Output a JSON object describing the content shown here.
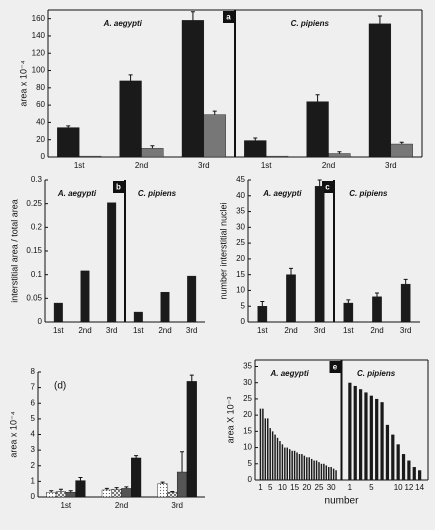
{
  "chart_data": [
    {
      "type": "bar",
      "label": "a",
      "label_boxed": true,
      "frame": true,
      "ylabel": "area x 10⁻⁴",
      "ylim": [
        0,
        170
      ],
      "yticks": [
        0,
        20,
        40,
        60,
        80,
        100,
        120,
        140,
        160
      ],
      "groups": [
        {
          "title": "A. aegypti",
          "categories": [
            "1st",
            "2nd",
            "3rd"
          ],
          "series": [
            {
              "color": "#1a1a1a",
              "values": [
                34,
                88,
                158
              ],
              "errors": [
                2,
                7,
                10
              ]
            },
            {
              "color": "#777777",
              "values": [
                1,
                10,
                49
              ],
              "errors": [
                null,
                3,
                4
              ]
            }
          ]
        },
        {
          "title": "C. pipiens",
          "categories": [
            "1st",
            "2nd",
            "3rd"
          ],
          "series": [
            {
              "color": "#1a1a1a",
              "values": [
                19,
                64,
                154
              ],
              "errors": [
                3,
                8,
                9
              ]
            },
            {
              "color": "#777777",
              "values": [
                1,
                4,
                15
              ],
              "errors": [
                null,
                2,
                2
              ]
            }
          ]
        }
      ]
    },
    {
      "type": "bar",
      "label": "b",
      "label_boxed": true,
      "frame": false,
      "ylabel": "interstitial area / total area",
      "ylim": [
        0,
        0.3
      ],
      "yticks": [
        0,
        0.05,
        0.1,
        0.15,
        0.2,
        0.25,
        0.3
      ],
      "groups": [
        {
          "title": "A. aegypti",
          "categories": [
            "1st",
            "2nd",
            "3rd"
          ],
          "series": [
            {
              "color": "#1a1a1a",
              "values": [
                0.04,
                0.108,
                0.252
              ]
            }
          ]
        },
        {
          "title": "C. pipiens",
          "categories": [
            "1st",
            "2nd",
            "3rd"
          ],
          "series": [
            {
              "color": "#1a1a1a",
              "values": [
                0.021,
                0.063,
                0.097
              ]
            }
          ]
        }
      ]
    },
    {
      "type": "bar",
      "label": "c",
      "label_boxed": true,
      "frame": false,
      "ylabel": "number interstitial nuclei",
      "ylim": [
        0,
        45
      ],
      "yticks": [
        0,
        5,
        10,
        15,
        20,
        25,
        30,
        35,
        40,
        45
      ],
      "groups": [
        {
          "title": "A. aegypti",
          "categories": [
            "1st",
            "2nd",
            "3rd"
          ],
          "series": [
            {
              "color": "#1a1a1a",
              "values": [
                5,
                15,
                43
              ],
              "errors": [
                1.5,
                2,
                2
              ]
            }
          ]
        },
        {
          "title": "C. pipiens",
          "categories": [
            "1st",
            "2nd",
            "3rd"
          ],
          "series": [
            {
              "color": "#1a1a1a",
              "values": [
                6,
                8,
                12
              ],
              "errors": [
                1,
                1.2,
                1.5
              ]
            }
          ]
        }
      ]
    },
    {
      "type": "bar",
      "label": "(d)",
      "label_boxed": false,
      "frame": false,
      "ylabel": "area x 10⁻⁴",
      "ylim": [
        0,
        8
      ],
      "yticks": [
        0,
        1,
        2,
        3,
        4,
        5,
        6,
        7,
        8
      ],
      "groups": [
        {
          "categories": [
            "1st",
            "2nd",
            "3rd"
          ],
          "series": [
            {
              "color": "#ffffff",
              "pattern": "dots",
              "values": [
                0.3,
                0.45,
                0.85
              ],
              "errors": [
                0.1,
                0.1,
                0.1
              ]
            },
            {
              "color": "#bbbbbb",
              "pattern": "checks",
              "values": [
                0.35,
                0.5,
                0.3
              ],
              "errors": [
                0.15,
                0.1,
                0.05
              ]
            },
            {
              "color": "#555555",
              "values": [
                0.3,
                0.55,
                1.6
              ],
              "errors": [
                0.1,
                0.1,
                1.3
              ]
            },
            {
              "color": "#1a1a1a",
              "values": [
                1.05,
                2.5,
                7.4
              ],
              "errors": [
                0.2,
                0.15,
                0.4
              ]
            }
          ]
        }
      ]
    },
    {
      "type": "bar",
      "label": "e",
      "label_boxed": true,
      "frame": true,
      "ylabel": "area X 10⁻³",
      "xlabel": "number",
      "ylim": [
        0,
        37
      ],
      "yticks": [
        0,
        5,
        10,
        15,
        20,
        25,
        30,
        35
      ],
      "groups": [
        {
          "title": "A. aegypti",
          "xlim": [
            0,
            33
          ],
          "xticks": [
            1,
            5,
            10,
            15,
            20,
            25,
            30
          ],
          "x": [
            1,
            2,
            3,
            4,
            5,
            6,
            7,
            8,
            9,
            10,
            11,
            12,
            13,
            14,
            15,
            16,
            17,
            18,
            19,
            20,
            21,
            22,
            23,
            24,
            25,
            26,
            27,
            28,
            29,
            30,
            31,
            32
          ],
          "series": [
            {
              "color": "#1a1a1a",
              "values": [
                22,
                22,
                19,
                19,
                16,
                15,
                14,
                13,
                12,
                11,
                10,
                10,
                9.5,
                9,
                9,
                8.5,
                8,
                8,
                7.5,
                7,
                7,
                6.5,
                6,
                6,
                5.5,
                5,
                5,
                4.5,
                4,
                4,
                3.5,
                3
              ]
            }
          ]
        },
        {
          "title": "C. pipiens",
          "xlim": [
            0,
            15
          ],
          "xticks": [
            1,
            5,
            10,
            12,
            14
          ],
          "x": [
            1,
            2,
            3,
            4,
            5,
            6,
            7,
            8,
            9,
            10,
            11,
            12,
            13,
            14
          ],
          "series": [
            {
              "color": "#1a1a1a",
              "values": [
                30,
                29,
                28,
                27,
                26,
                25,
                24,
                17,
                14,
                11,
                8,
                6,
                4,
                3
              ]
            }
          ]
        }
      ]
    }
  ]
}
